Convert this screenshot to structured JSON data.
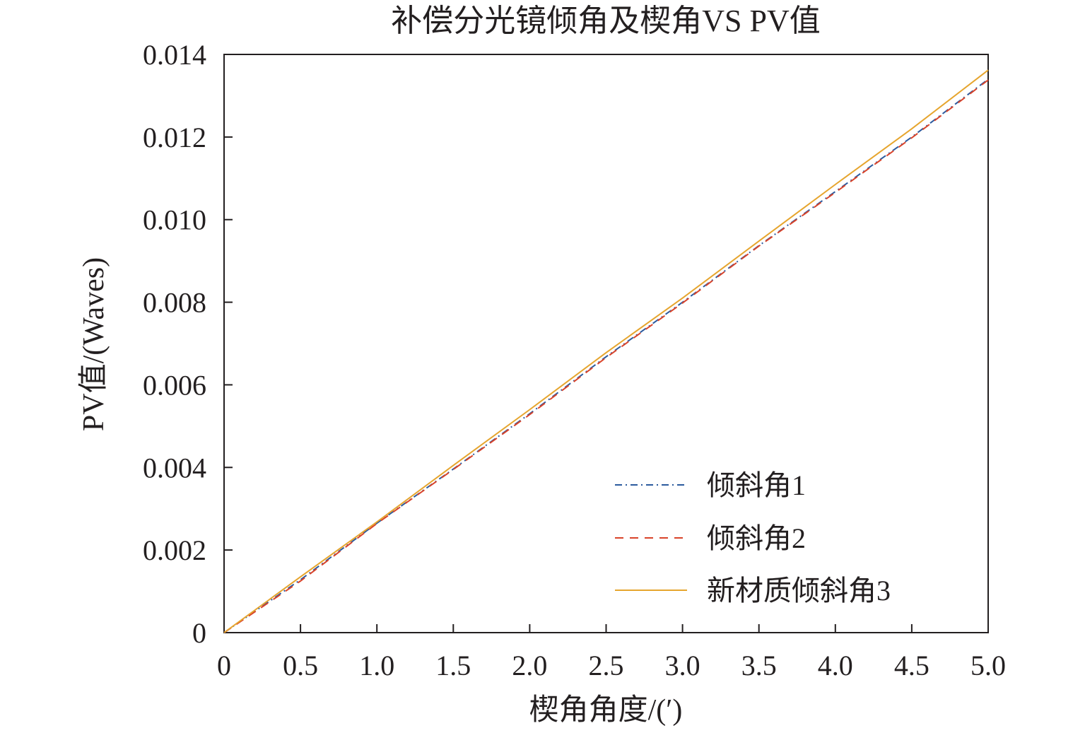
{
  "chart_data": {
    "type": "line",
    "title": "补偿分光镜倾角及楔角VS PV值",
    "xlabel": "楔角角度/(′)",
    "ylabel": "PV值/(Waves)",
    "xlim": [
      0,
      5.0
    ],
    "ylim": [
      0,
      0.014
    ],
    "xticks": [
      0,
      0.5,
      1.0,
      1.5,
      2.0,
      2.5,
      3.0,
      3.5,
      4.0,
      4.5,
      5.0
    ],
    "xtick_labels": [
      "0",
      "0.5",
      "1.0",
      "1.5",
      "2.0",
      "2.5",
      "3.0",
      "3.5",
      "4.0",
      "4.5",
      "5.0"
    ],
    "yticks": [
      0,
      0.002,
      0.004,
      0.006,
      0.008,
      0.01,
      0.012,
      0.014
    ],
    "ytick_labels": [
      "0",
      "0.002",
      "0.004",
      "0.006",
      "0.008",
      "0.010",
      "0.012",
      "0.014"
    ],
    "grid": false,
    "legend_position": "bottom-right",
    "series": [
      {
        "name": "倾斜角1",
        "color": "#2b5a9e",
        "dash": "dash-dot",
        "x": [
          0,
          0.5,
          1.0,
          1.5,
          2.0,
          2.5,
          3.0,
          3.5,
          4.0,
          4.5,
          5.0
        ],
        "y": [
          0,
          0.00128,
          0.00265,
          0.00396,
          0.0053,
          0.00668,
          0.008,
          0.00937,
          0.01068,
          0.012,
          0.0134
        ]
      },
      {
        "name": "倾斜角2",
        "color": "#d9432a",
        "dash": "dashed",
        "x": [
          0,
          0.5,
          1.0,
          1.5,
          2.0,
          2.5,
          3.0,
          3.5,
          4.0,
          4.5,
          5.0
        ],
        "y": [
          0,
          0.00125,
          0.00264,
          0.00395,
          0.00528,
          0.00666,
          0.00798,
          0.00936,
          0.01066,
          0.01198,
          0.01338
        ]
      },
      {
        "name": "新材质倾斜角3",
        "color": "#e6a52e",
        "dash": "solid",
        "x": [
          0,
          0.5,
          1.0,
          1.5,
          2.0,
          2.5,
          3.0,
          3.5,
          4.0,
          4.5,
          5.0
        ],
        "y": [
          0,
          0.00135,
          0.00268,
          0.00405,
          0.0054,
          0.00678,
          0.0081,
          0.00948,
          0.01085,
          0.0122,
          0.01362
        ]
      }
    ]
  }
}
